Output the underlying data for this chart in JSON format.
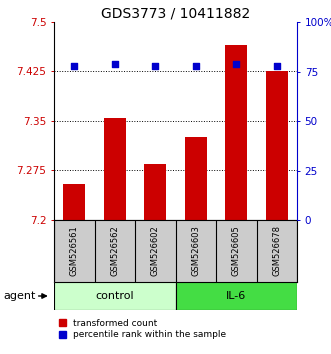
{
  "title": "GDS3773 / 10411882",
  "samples": [
    "GSM526561",
    "GSM526562",
    "GSM526602",
    "GSM526603",
    "GSM526605",
    "GSM526678"
  ],
  "red_values": [
    7.255,
    7.355,
    7.285,
    7.325,
    7.465,
    7.425
  ],
  "blue_values": [
    78,
    79,
    78,
    78,
    79,
    78
  ],
  "ylim_left": [
    7.2,
    7.5
  ],
  "ylim_right": [
    0,
    100
  ],
  "yticks_left": [
    7.2,
    7.275,
    7.35,
    7.425,
    7.5
  ],
  "ytick_labels_left": [
    "7.2",
    "7.275",
    "7.35",
    "7.425",
    "7.5"
  ],
  "yticks_right": [
    0,
    25,
    50,
    75,
    100
  ],
  "ytick_labels_right": [
    "0",
    "25",
    "50",
    "75",
    "100%"
  ],
  "bar_color": "#cc0000",
  "dot_color": "#0000cc",
  "bar_width": 0.55,
  "control_color": "#ccffcc",
  "il6_color": "#44dd44",
  "samples_bg": "#cccccc",
  "agent_label": "agent",
  "control_label": "control",
  "il6_label": "IL-6",
  "legend_red": "transformed count",
  "legend_blue": "percentile rank within the sample",
  "title_fontsize": 10,
  "tick_fontsize": 7.5,
  "sample_fontsize": 6,
  "group_fontsize": 8,
  "legend_fontsize": 6.5,
  "agent_fontsize": 8
}
